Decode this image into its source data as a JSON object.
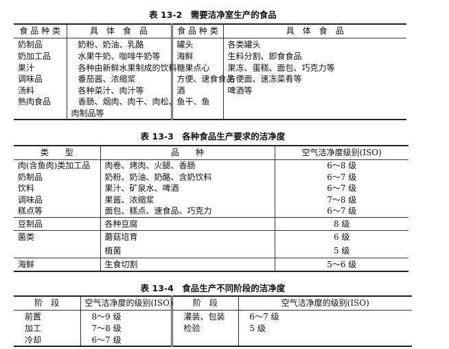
{
  "table1": {
    "title": "表 13-2　需要洁净室生产的食品",
    "headers": [
      "食 品 种 类",
      "具　体　食　品",
      "食 品 种 类",
      "具　体　食　品"
    ],
    "rows": [
      [
        "奶制品",
        "奶粉、奶油、乳酪",
        "罐头",
        "各类罐头"
      ],
      [
        "奶加工品",
        "水果牛奶、咖啡牛奶等",
        "海鲜",
        "生料分割、即食食品"
      ],
      [
        "果汁",
        "各种由新鲜水果制成的饮料",
        "糖果点心",
        "果冻、蛋糕、面包、巧克力等"
      ],
      [
        "调味品",
        "番茄酱、浓缩浆",
        "方便、速食食品",
        "方便面、速冻菜肴等"
      ],
      [
        "汤料",
        "各种菜汁、肉汁等",
        "酒",
        "啤酒等"
      ],
      [
        "熟肉食品",
        "香肠、烟肉、肉干、肉松、鱼干、鱼",
        "",
        ""
      ],
      [
        "",
        "肉制品等",
        "",
        ""
      ]
    ]
  },
  "table2": {
    "title": "表 13-3　各种食品生产要求的洁净度",
    "headers": [
      "类　　型",
      "品　　种",
      "空气洁净度级别(ISO)"
    ],
    "rows": [
      [
        "肉(含鱼肉)类加工品",
        "肉卷、烤肉、火腿、香肠",
        "6～8 级"
      ],
      [
        "奶制品",
        "奶粉、奶油、奶酪、含奶饮料",
        "6～7 级"
      ],
      [
        "饮料",
        "果汁、矿泉水、啤酒",
        "6～7 级"
      ],
      [
        "调味品",
        "果酱、浓缩浆",
        "7～8 级"
      ],
      [
        "糕点等",
        "面包、糕点、速食品、巧克力",
        "6～7 级"
      ],
      [
        "豆制品",
        "各种豆腐",
        "8 级"
      ],
      [
        "菌类",
        "蘑菇培育",
        "6 级"
      ],
      [
        "",
        "植菌",
        "5 级"
      ],
      [
        "海鲜",
        "生食切割",
        "5～6 级"
      ]
    ]
  },
  "table3": {
    "title": "表 13-4　食品生产不同阶段的洁净度",
    "headers": [
      "阶　段",
      "空气洁净度的级别(ISO)",
      "阶　段",
      "空气洁净度的级别(ISO)"
    ],
    "rows": [
      [
        "前置",
        "8～9 级",
        "灌装、包装",
        "6～7 级"
      ],
      [
        "加工",
        "7～8 级",
        "检验",
        "5 级"
      ],
      [
        "冷却",
        "6～7 级",
        "",
        ""
      ]
    ]
  }
}
